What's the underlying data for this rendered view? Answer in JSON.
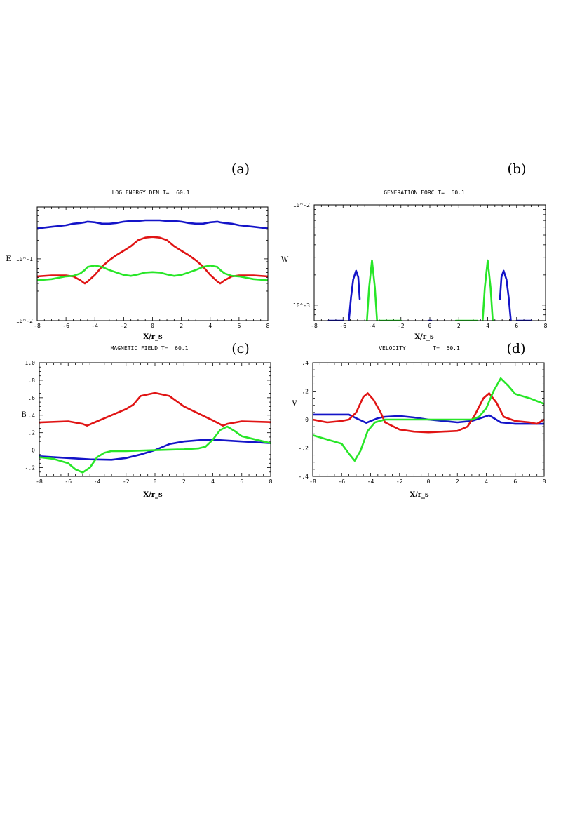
{
  "colors": {
    "blue": "#1414c8",
    "red": "#e01414",
    "green": "#28e628"
  },
  "chart_data": [
    {
      "panel_label": "(a)",
      "type": "line",
      "title": "LOG ENERGY DEN T=  60.1",
      "xlabel": "X/r_s",
      "ylabel": "E",
      "yscale": "log",
      "xlim": [
        -8,
        8
      ],
      "ylim": [
        0.01,
        0.69
      ],
      "xticks": [
        "-8",
        "-6",
        "-4",
        "-2",
        "0",
        "2",
        "4",
        "6",
        "8"
      ],
      "yticks": [
        {
          "value": 0.01,
          "label": "10^-2"
        },
        {
          "value": 0.1,
          "label": "10^-1"
        }
      ],
      "x": [
        -8,
        -7,
        -6,
        -5.5,
        -5,
        -4.7,
        -4.5,
        -4,
        -3.5,
        -3,
        -2.5,
        -2,
        -1.5,
        -1,
        -0.5,
        0,
        0.5,
        1,
        1.5,
        2,
        2.5,
        3,
        3.5,
        4,
        4.5,
        4.7,
        5,
        5.5,
        6,
        7,
        8
      ],
      "series": [
        {
          "color": "blue",
          "values": [
            0.31,
            0.33,
            0.35,
            0.37,
            0.38,
            0.39,
            0.4,
            0.39,
            0.37,
            0.37,
            0.38,
            0.4,
            0.41,
            0.41,
            0.42,
            0.42,
            0.42,
            0.41,
            0.41,
            0.4,
            0.38,
            0.37,
            0.37,
            0.39,
            0.4,
            0.39,
            0.38,
            0.37,
            0.35,
            0.33,
            0.31
          ]
        },
        {
          "color": "red",
          "values": [
            0.052,
            0.054,
            0.054,
            0.052,
            0.045,
            0.04,
            0.043,
            0.055,
            0.075,
            0.095,
            0.115,
            0.135,
            0.16,
            0.2,
            0.22,
            0.226,
            0.22,
            0.2,
            0.16,
            0.135,
            0.115,
            0.095,
            0.075,
            0.055,
            0.043,
            0.04,
            0.045,
            0.052,
            0.054,
            0.054,
            0.052
          ]
        },
        {
          "color": "green",
          "values": [
            0.045,
            0.047,
            0.052,
            0.053,
            0.058,
            0.066,
            0.074,
            0.078,
            0.074,
            0.066,
            0.06,
            0.055,
            0.053,
            0.056,
            0.06,
            0.061,
            0.06,
            0.056,
            0.053,
            0.055,
            0.06,
            0.066,
            0.074,
            0.078,
            0.074,
            0.066,
            0.058,
            0.053,
            0.052,
            0.047,
            0.045
          ]
        }
      ]
    },
    {
      "panel_label": "(b)",
      "type": "line",
      "title": "GENERATION FORC T=  60.1",
      "xlabel": "X/r_s",
      "ylabel": "W",
      "yscale": "log",
      "xlim": [
        -8,
        8
      ],
      "ylim": [
        0.0007,
        0.01
      ],
      "xticks": [
        "-8",
        "-6",
        "-4",
        "-2",
        "0",
        "2",
        "4",
        "6",
        "8"
      ],
      "yticks": [
        {
          "value": 0.01,
          "label": "10^-2"
        },
        {
          "value": 0.001,
          "label": "10^-3"
        }
      ],
      "series": [
        {
          "color": "blue",
          "segments": [
            [
              [
                -7,
                0.0007
              ],
              [
                -6,
                0.0007
              ]
            ],
            [
              [
                -5.6,
                0.0007
              ],
              [
                -5.45,
                0.0012
              ],
              [
                -5.3,
                0.0018
              ],
              [
                -5.1,
                0.0022
              ],
              [
                -4.95,
                0.0019
              ],
              [
                -4.85,
                0.00115
              ]
            ],
            [
              [
                -0.1,
                0.0007
              ],
              [
                0.1,
                0.0007
              ]
            ],
            [
              [
                4.85,
                0.00115
              ],
              [
                4.95,
                0.0019
              ],
              [
                5.1,
                0.0022
              ],
              [
                5.3,
                0.0018
              ],
              [
                5.45,
                0.0012
              ],
              [
                5.6,
                0.0007
              ]
            ],
            [
              [
                6,
                0.0007
              ],
              [
                7,
                0.0007
              ]
            ]
          ]
        },
        {
          "color": "green",
          "segments": [
            [
              [
                -4.35,
                0.0007
              ],
              [
                -4.2,
                0.0015
              ],
              [
                -4,
                0.0028
              ],
              [
                -3.8,
                0.0015
              ],
              [
                -3.65,
                0.0007
              ]
            ],
            [
              [
                -3.5,
                0.0007
              ],
              [
                -2,
                0.0007
              ]
            ],
            [
              [
                1.8,
                0.0007
              ],
              [
                3.3,
                0.0007
              ]
            ],
            [
              [
                3.65,
                0.0007
              ],
              [
                3.8,
                0.0015
              ],
              [
                4,
                0.0028
              ],
              [
                4.2,
                0.0015
              ],
              [
                4.35,
                0.0007
              ]
            ]
          ]
        }
      ]
    },
    {
      "panel_label": "(c)",
      "type": "line",
      "title": "MAGNETIC FIELD T=  60.1",
      "xlabel": "X/r_s",
      "ylabel": "B",
      "yscale": "linear",
      "xlim": [
        -8,
        8
      ],
      "ylim": [
        -0.3,
        1.0
      ],
      "xticks": [
        "-8",
        "-6",
        "-4",
        "-2",
        "0",
        "2",
        "4",
        "6",
        "8"
      ],
      "yticks": [
        {
          "value": 1.0,
          "label": "1.0"
        },
        {
          "value": 0.8,
          "label": ".8"
        },
        {
          "value": 0.6,
          "label": ".6"
        },
        {
          "value": 0.4,
          "label": ".4"
        },
        {
          "value": 0.2,
          "label": ".2"
        },
        {
          "value": 0,
          "label": "0"
        },
        {
          "value": -0.2,
          "label": "-.2"
        }
      ],
      "series": [
        {
          "color": "red",
          "points": [
            [
              -8,
              0.317
            ],
            [
              -6,
              0.33
            ],
            [
              -5,
              0.3
            ],
            [
              -4.7,
              0.28
            ],
            [
              -4,
              0.33
            ],
            [
              -3,
              0.4
            ],
            [
              -2,
              0.47
            ],
            [
              -1.5,
              0.52
            ],
            [
              -1,
              0.62
            ],
            [
              0,
              0.655
            ],
            [
              1,
              0.62
            ],
            [
              2,
              0.5
            ],
            [
              3,
              0.42
            ],
            [
              4,
              0.34
            ],
            [
              4.7,
              0.28
            ],
            [
              5,
              0.3
            ],
            [
              6,
              0.33
            ],
            [
              8,
              0.32
            ]
          ]
        },
        {
          "color": "blue",
          "points": [
            [
              -8,
              -0.07
            ],
            [
              -6,
              -0.09
            ],
            [
              -4.5,
              -0.105
            ],
            [
              -3,
              -0.11
            ],
            [
              -2,
              -0.09
            ],
            [
              -1,
              -0.05
            ],
            [
              0,
              0.0
            ],
            [
              1,
              0.07
            ],
            [
              2,
              0.1
            ],
            [
              3.5,
              0.12
            ],
            [
              4,
              0.12
            ],
            [
              5,
              0.11
            ],
            [
              6,
              0.1
            ],
            [
              8,
              0.08
            ]
          ]
        },
        {
          "color": "green",
          "points": [
            [
              -8,
              -0.08
            ],
            [
              -7,
              -0.1
            ],
            [
              -6,
              -0.15
            ],
            [
              -5.5,
              -0.22
            ],
            [
              -5,
              -0.255
            ],
            [
              -4.5,
              -0.2
            ],
            [
              -4,
              -0.08
            ],
            [
              -3.5,
              -0.03
            ],
            [
              -3,
              -0.01
            ],
            [
              -2,
              -0.01
            ],
            [
              0,
              0.0
            ],
            [
              2,
              0.01
            ],
            [
              3,
              0.02
            ],
            [
              3.5,
              0.04
            ],
            [
              4,
              0.12
            ],
            [
              4.5,
              0.23
            ],
            [
              5,
              0.27
            ],
            [
              5.5,
              0.22
            ],
            [
              6,
              0.16
            ],
            [
              7,
              0.12
            ],
            [
              8,
              0.08
            ]
          ]
        }
      ]
    },
    {
      "panel_label": "(d)",
      "type": "line",
      "title": "VELOCITY        T=  60.1",
      "xlabel": "X/r_s",
      "ylabel": "V",
      "yscale": "linear",
      "xlim": [
        -8,
        8
      ],
      "ylim": [
        -0.4,
        0.4
      ],
      "xticks": [
        "-8",
        "-6",
        "-4",
        "-2",
        "0",
        "2",
        "4",
        "6",
        "8"
      ],
      "yticks": [
        {
          "value": 0.4,
          "label": ".4"
        },
        {
          "value": 0.2,
          "label": ".2"
        },
        {
          "value": 0,
          "label": "0"
        },
        {
          "value": -0.2,
          "label": "-.2"
        },
        {
          "value": -0.4,
          "label": "-.4"
        }
      ],
      "series": [
        {
          "color": "blue",
          "points": [
            [
              -8,
              0.035
            ],
            [
              -5.5,
              0.035
            ],
            [
              -5,
              0.01
            ],
            [
              -4.3,
              -0.023
            ],
            [
              -3.5,
              0.01
            ],
            [
              -3,
              0.02
            ],
            [
              -2,
              0.025
            ],
            [
              -1,
              0.015
            ],
            [
              0,
              0.0
            ],
            [
              1,
              -0.01
            ],
            [
              2,
              -0.02
            ],
            [
              3,
              -0.01
            ],
            [
              4.2,
              0.03
            ],
            [
              5,
              -0.02
            ],
            [
              6,
              -0.03
            ],
            [
              8,
              -0.03
            ]
          ]
        },
        {
          "color": "red",
          "points": [
            [
              -8,
              0.0
            ],
            [
              -7,
              -0.02
            ],
            [
              -6,
              -0.01
            ],
            [
              -5.5,
              0.0
            ],
            [
              -5,
              0.05
            ],
            [
              -4.5,
              0.16
            ],
            [
              -4.2,
              0.185
            ],
            [
              -3.8,
              0.14
            ],
            [
              -3.3,
              0.05
            ],
            [
              -3,
              -0.02
            ],
            [
              -2,
              -0.07
            ],
            [
              -1,
              -0.085
            ],
            [
              0,
              -0.09
            ],
            [
              1,
              -0.085
            ],
            [
              2,
              -0.08
            ],
            [
              2.7,
              -0.05
            ],
            [
              3.2,
              0.03
            ],
            [
              3.8,
              0.15
            ],
            [
              4.2,
              0.185
            ],
            [
              4.7,
              0.12
            ],
            [
              5.2,
              0.02
            ],
            [
              6,
              -0.01
            ],
            [
              7,
              -0.02
            ],
            [
              7.5,
              -0.03
            ],
            [
              8,
              0.0
            ]
          ]
        },
        {
          "color": "green",
          "points": [
            [
              -8,
              -0.11
            ],
            [
              -7,
              -0.14
            ],
            [
              -6,
              -0.17
            ],
            [
              -5.5,
              -0.24
            ],
            [
              -5.1,
              -0.29
            ],
            [
              -4.7,
              -0.22
            ],
            [
              -4.2,
              -0.08
            ],
            [
              -3.7,
              -0.02
            ],
            [
              -3,
              0.0
            ],
            [
              0,
              0.0
            ],
            [
              3,
              0.0
            ],
            [
              3.5,
              0.02
            ],
            [
              4,
              0.08
            ],
            [
              4.5,
              0.2
            ],
            [
              5,
              0.29
            ],
            [
              5.5,
              0.24
            ],
            [
              6,
              0.18
            ],
            [
              7,
              0.15
            ],
            [
              8,
              0.11
            ]
          ]
        }
      ]
    }
  ]
}
